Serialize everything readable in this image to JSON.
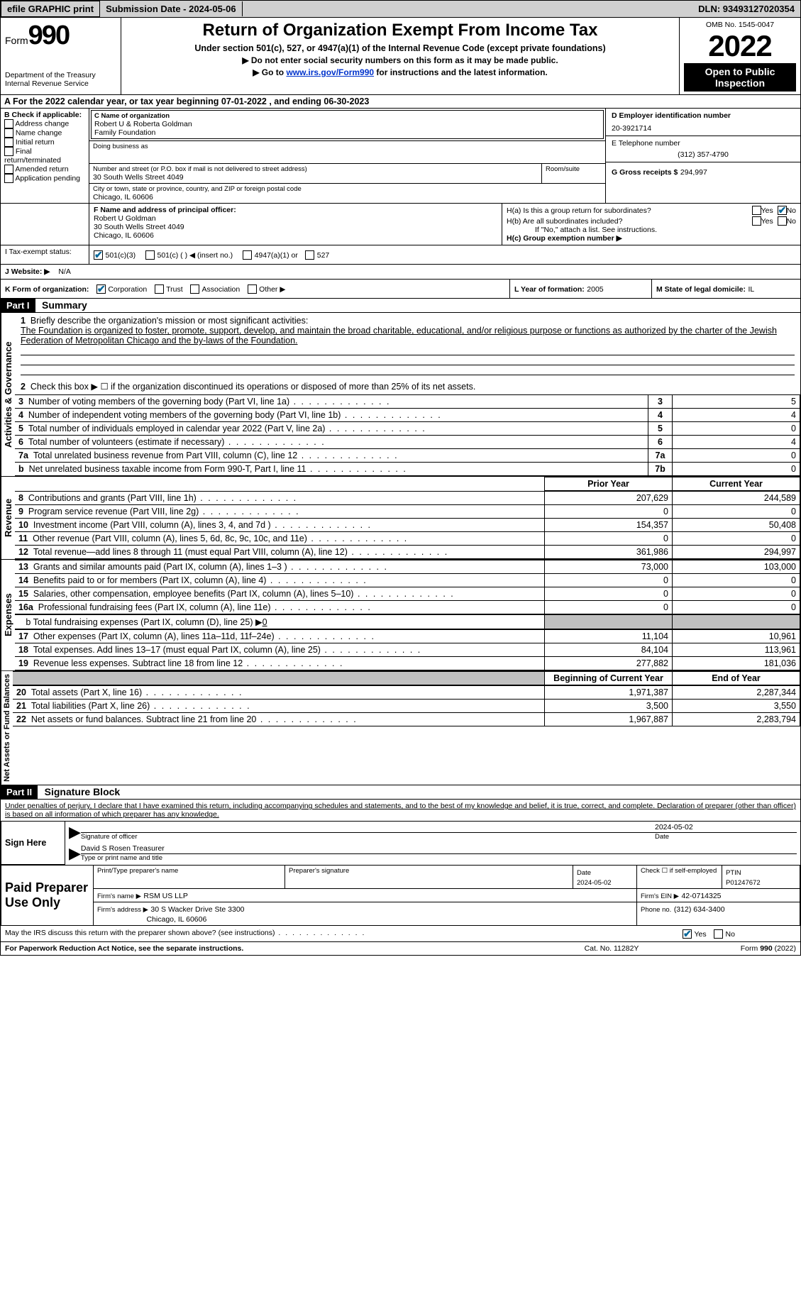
{
  "topbar": {
    "efile": "efile GRAPHIC print",
    "submission": "Submission Date - 2024-05-06",
    "dln": "DLN: 93493127020354"
  },
  "header": {
    "form_label": "Form",
    "form_num": "990",
    "dept": "Department of the Treasury",
    "irs": "Internal Revenue Service",
    "title": "Return of Organization Exempt From Income Tax",
    "subtitle": "Under section 501(c), 527, or 4947(a)(1) of the Internal Revenue Code (except private foundations)",
    "line_ssn": "▶ Do not enter social security numbers on this form as it may be made public.",
    "line_goto_pre": "▶ Go to ",
    "line_goto_link": "www.irs.gov/Form990",
    "line_goto_post": " for instructions and the latest information.",
    "omb": "OMB No. 1545-0047",
    "year": "2022",
    "open": "Open to Public Inspection"
  },
  "a_line": "A For the 2022 calendar year, or tax year beginning 07-01-2022     , and ending 06-30-2023",
  "sec_b": {
    "label": "B Check if applicable:",
    "items": [
      "Address change",
      "Name change",
      "Initial return",
      "Final return/terminated",
      "Amended return",
      "Application pending"
    ]
  },
  "sec_c": {
    "name_label": "C Name of organization",
    "name1": "Robert U & Roberta Goldman",
    "name2": "Family Foundation",
    "dba_label": "Doing business as",
    "addr_label": "Number and street (or P.O. box if mail is not delivered to street address)",
    "room_label": "Room/suite",
    "addr": "30 South Wells Street 4049",
    "city_label": "City or town, state or province, country, and ZIP or foreign postal code",
    "city": "Chicago, IL  60606"
  },
  "sec_d": {
    "ein_label": "D Employer identification number",
    "ein": "20-3921714",
    "tel_label": "E Telephone number",
    "tel": "(312) 357-4790",
    "gross_label": "G Gross receipts $",
    "gross": "294,997"
  },
  "sec_f": {
    "label": "F  Name and address of principal officer:",
    "name": "Robert U Goldman",
    "addr": "30 South Wells Street 4049",
    "city": "Chicago, IL  60606"
  },
  "sec_h": {
    "ha": "H(a)  Is this a group return for subordinates?",
    "hb": "H(b)  Are all subordinates included?",
    "hb_note": "If \"No,\" attach a list. See instructions.",
    "hc": "H(c)  Group exemption number ▶",
    "yes": "Yes",
    "no": "No"
  },
  "sec_i": {
    "label": "I   Tax-exempt status:",
    "c3": "501(c)(3)",
    "c": "501(c) (   )  ◀ (insert no.)",
    "a1": "4947(a)(1) or",
    "s527": "527"
  },
  "sec_j": {
    "label": "J   Website: ▶",
    "val": "N/A"
  },
  "sec_k": {
    "label": "K Form of organization:",
    "corp": "Corporation",
    "trust": "Trust",
    "assoc": "Association",
    "other": "Other ▶"
  },
  "sec_l": {
    "label": "L Year of formation:",
    "val": "2005"
  },
  "sec_m": {
    "label": "M State of legal domicile:",
    "val": "IL"
  },
  "part1": {
    "num": "Part I",
    "title": "Summary",
    "q1_label": "Briefly describe the organization's mission or most significant activities:",
    "q1_text": "The Foundation is organized to foster, promote, support, develop, and maintain the broad charitable, educational, and/or religious purpose or functions as authorized by the charter of the Jewish Federation of Metropolitan Chicago and the by-laws of the Foundation.",
    "q2": "Check this box ▶ ☐ if the organization discontinued its operations or disposed of more than 25% of its net assets.",
    "rows_ag": [
      {
        "n": "3",
        "t": "Number of voting members of the governing body (Part VI, line 1a)",
        "box": "3",
        "v": "5"
      },
      {
        "n": "4",
        "t": "Number of independent voting members of the governing body (Part VI, line 1b)",
        "box": "4",
        "v": "4"
      },
      {
        "n": "5",
        "t": "Total number of individuals employed in calendar year 2022 (Part V, line 2a)",
        "box": "5",
        "v": "0"
      },
      {
        "n": "6",
        "t": "Total number of volunteers (estimate if necessary)",
        "box": "6",
        "v": "4"
      },
      {
        "n": "7a",
        "t": "Total unrelated business revenue from Part VIII, column (C), line 12",
        "box": "7a",
        "v": "0"
      },
      {
        "n": "b",
        "t": "Net unrelated business taxable income from Form 990-T, Part I, line 11",
        "box": "7b",
        "v": "0"
      }
    ],
    "col_prior": "Prior Year",
    "col_current": "Current Year",
    "rows_rev": [
      {
        "n": "8",
        "t": "Contributions and grants (Part VIII, line 1h)",
        "p": "207,629",
        "c": "244,589"
      },
      {
        "n": "9",
        "t": "Program service revenue (Part VIII, line 2g)",
        "p": "0",
        "c": "0"
      },
      {
        "n": "10",
        "t": "Investment income (Part VIII, column (A), lines 3, 4, and 7d )",
        "p": "154,357",
        "c": "50,408"
      },
      {
        "n": "11",
        "t": "Other revenue (Part VIII, column (A), lines 5, 6d, 8c, 9c, 10c, and 11e)",
        "p": "0",
        "c": "0"
      },
      {
        "n": "12",
        "t": "Total revenue—add lines 8 through 11 (must equal Part VIII, column (A), line 12)",
        "p": "361,986",
        "c": "294,997"
      }
    ],
    "rows_exp": [
      {
        "n": "13",
        "t": "Grants and similar amounts paid (Part IX, column (A), lines 1–3 )",
        "p": "73,000",
        "c": "103,000"
      },
      {
        "n": "14",
        "t": "Benefits paid to or for members (Part IX, column (A), line 4)",
        "p": "0",
        "c": "0"
      },
      {
        "n": "15",
        "t": "Salaries, other compensation, employee benefits (Part IX, column (A), lines 5–10)",
        "p": "0",
        "c": "0"
      },
      {
        "n": "16a",
        "t": "Professional fundraising fees (Part IX, column (A), line 11e)",
        "p": "0",
        "c": "0"
      }
    ],
    "row_16b_label": "b  Total fundraising expenses (Part IX, column (D), line 25) ▶",
    "row_16b_val": "0",
    "rows_exp2": [
      {
        "n": "17",
        "t": "Other expenses (Part IX, column (A), lines 11a–11d, 11f–24e)",
        "p": "11,104",
        "c": "10,961"
      },
      {
        "n": "18",
        "t": "Total expenses. Add lines 13–17 (must equal Part IX, column (A), line 25)",
        "p": "84,104",
        "c": "113,961"
      },
      {
        "n": "19",
        "t": "Revenue less expenses. Subtract line 18 from line 12",
        "p": "277,882",
        "c": "181,036"
      }
    ],
    "col_begin": "Beginning of Current Year",
    "col_end": "End of Year",
    "rows_net": [
      {
        "n": "20",
        "t": "Total assets (Part X, line 16)",
        "p": "1,971,387",
        "c": "2,287,344"
      },
      {
        "n": "21",
        "t": "Total liabilities (Part X, line 26)",
        "p": "3,500",
        "c": "3,550"
      },
      {
        "n": "22",
        "t": "Net assets or fund balances. Subtract line 21 from line 20",
        "p": "1,967,887",
        "c": "2,283,794"
      }
    ],
    "vlabels": {
      "ag": "Activities & Governance",
      "rev": "Revenue",
      "exp": "Expenses",
      "net": "Net Assets or Fund Balances"
    }
  },
  "part2": {
    "num": "Part II",
    "title": "Signature Block",
    "decl": "Under penalties of perjury, I declare that I have examined this return, including accompanying schedules and statements, and to the best of my knowledge and belief, it is true, correct, and complete. Declaration of preparer (other than officer) is based on all information of which preparer has any knowledge.",
    "sign_here": "Sign Here",
    "sig_officer": "Signature of officer",
    "sig_date": "2024-05-02",
    "date_label": "Date",
    "officer_name": "David S Rosen  Treasurer",
    "officer_label": "Type or print name and title",
    "paid": "Paid Preparer Use Only",
    "prep_name_label": "Print/Type preparer's name",
    "prep_sig_label": "Preparer's signature",
    "prep_date_label": "Date",
    "prep_date": "2024-05-02",
    "check_self": "Check ☐ if self-employed",
    "ptin_label": "PTIN",
    "ptin": "P01247672",
    "firm_name_label": "Firm's name     ▶",
    "firm_name": "RSM US LLP",
    "firm_ein_label": "Firm's EIN ▶",
    "firm_ein": "42-0714325",
    "firm_addr_label": "Firm's address ▶",
    "firm_addr1": "30 S Wacker Drive Ste 3300",
    "firm_addr2": "Chicago, IL  60606",
    "firm_phone_label": "Phone no.",
    "firm_phone": "(312) 634-3400",
    "discuss": "May the IRS discuss this return with the preparer shown above? (see instructions)",
    "yes": "Yes",
    "no": "No"
  },
  "footer": {
    "pra": "For Paperwork Reduction Act Notice, see the separate instructions.",
    "cat": "Cat. No. 11282Y",
    "form": "Form 990 (2022)"
  }
}
